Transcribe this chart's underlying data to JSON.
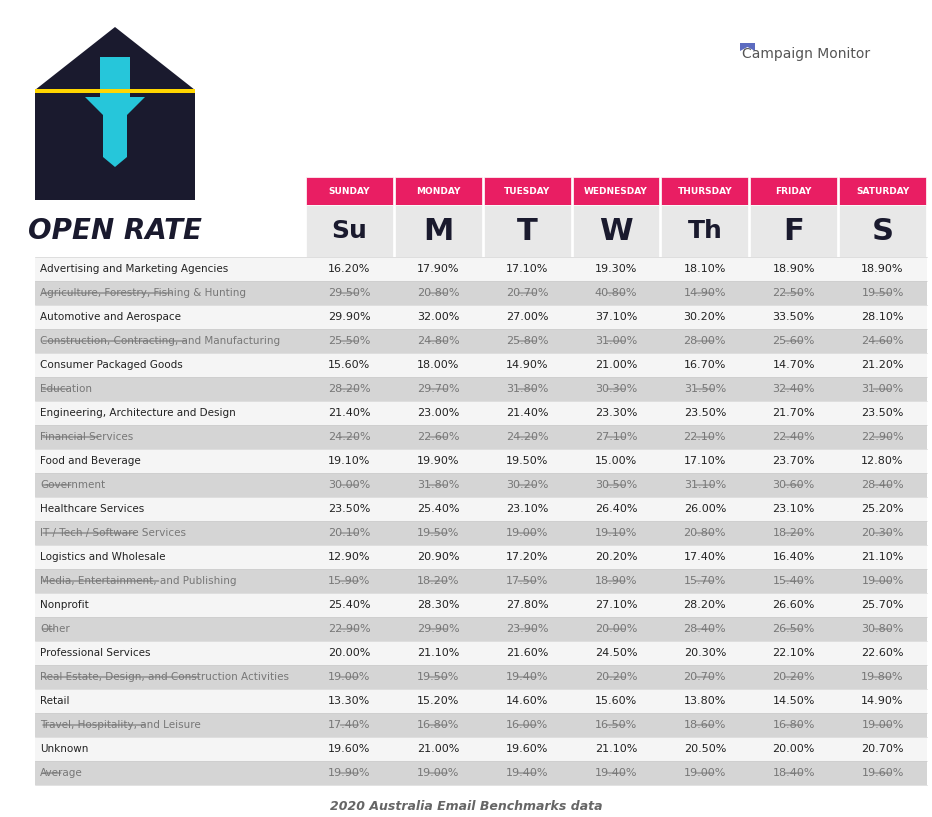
{
  "days": [
    "SUNDAY",
    "MONDAY",
    "TUESDAY",
    "WEDNESDAY",
    "THURSDAY",
    "FRIDAY",
    "SATURDAY"
  ],
  "day_letters": [
    "Su",
    "M",
    "T",
    "W",
    "Th",
    "F",
    "S"
  ],
  "rows": [
    {
      "industry": "Advertising and Marketing Agencies",
      "values": [
        "16.20%",
        "17.90%",
        "17.10%",
        "19.30%",
        "18.10%",
        "18.90%",
        "18.90%"
      ],
      "strikethrough": false
    },
    {
      "industry": "Agriculture, Forestry, Fishing & Hunting",
      "values": [
        "29.50%",
        "20.80%",
        "20.70%",
        "40.80%",
        "14.90%",
        "22.50%",
        "19.50%"
      ],
      "strikethrough": true
    },
    {
      "industry": "Automotive and Aerospace",
      "values": [
        "29.90%",
        "32.00%",
        "27.00%",
        "37.10%",
        "30.20%",
        "33.50%",
        "28.10%"
      ],
      "strikethrough": false
    },
    {
      "industry": "Construction, Contracting, and Manufacturing",
      "values": [
        "25.50%",
        "24.80%",
        "25.80%",
        "31.00%",
        "28.00%",
        "25.60%",
        "24.60%"
      ],
      "strikethrough": true
    },
    {
      "industry": "Consumer Packaged Goods",
      "values": [
        "15.60%",
        "18.00%",
        "14.90%",
        "21.00%",
        "16.70%",
        "14.70%",
        "21.20%"
      ],
      "strikethrough": false
    },
    {
      "industry": "Education",
      "values": [
        "28.20%",
        "29.70%",
        "31.80%",
        "30.30%",
        "31.50%",
        "32.40%",
        "31.00%"
      ],
      "strikethrough": true
    },
    {
      "industry": "Engineering, Architecture and Design",
      "values": [
        "21.40%",
        "23.00%",
        "21.40%",
        "23.30%",
        "23.50%",
        "21.70%",
        "23.50%"
      ],
      "strikethrough": false
    },
    {
      "industry": "Financial Services",
      "values": [
        "24.20%",
        "22.60%",
        "24.20%",
        "27.10%",
        "22.10%",
        "22.40%",
        "22.90%"
      ],
      "strikethrough": true
    },
    {
      "industry": "Food and Beverage",
      "values": [
        "19.10%",
        "19.90%",
        "19.50%",
        "15.00%",
        "17.10%",
        "23.70%",
        "12.80%"
      ],
      "strikethrough": false
    },
    {
      "industry": "Government",
      "values": [
        "30.00%",
        "31.80%",
        "30.20%",
        "30.50%",
        "31.10%",
        "30.60%",
        "28.40%"
      ],
      "strikethrough": true
    },
    {
      "industry": "Healthcare Services",
      "values": [
        "23.50%",
        "25.40%",
        "23.10%",
        "26.40%",
        "26.00%",
        "23.10%",
        "25.20%"
      ],
      "strikethrough": false
    },
    {
      "industry": "IT / Tech / Software Services",
      "values": [
        "20.10%",
        "19.50%",
        "19.00%",
        "19.10%",
        "20.80%",
        "18.20%",
        "20.30%"
      ],
      "strikethrough": true
    },
    {
      "industry": "Logistics and Wholesale",
      "values": [
        "12.90%",
        "20.90%",
        "17.20%",
        "20.20%",
        "17.40%",
        "16.40%",
        "21.10%"
      ],
      "strikethrough": false
    },
    {
      "industry": "Media, Entertainment, and Publishing",
      "values": [
        "15.90%",
        "18.20%",
        "17.50%",
        "18.90%",
        "15.70%",
        "15.40%",
        "19.00%"
      ],
      "strikethrough": true
    },
    {
      "industry": "Nonprofit",
      "values": [
        "25.40%",
        "28.30%",
        "27.80%",
        "27.10%",
        "28.20%",
        "26.60%",
        "25.70%"
      ],
      "strikethrough": false
    },
    {
      "industry": "Other",
      "values": [
        "22.90%",
        "29.90%",
        "23.90%",
        "20.00%",
        "28.40%",
        "26.50%",
        "30.80%"
      ],
      "strikethrough": true
    },
    {
      "industry": "Professional Services",
      "values": [
        "20.00%",
        "21.10%",
        "21.60%",
        "24.50%",
        "20.30%",
        "22.10%",
        "22.60%"
      ],
      "strikethrough": false
    },
    {
      "industry": "Real Estate, Design, and Construction Activities",
      "values": [
        "19.00%",
        "19.50%",
        "19.40%",
        "20.20%",
        "20.70%",
        "20.20%",
        "19.80%"
      ],
      "strikethrough": true
    },
    {
      "industry": "Retail",
      "values": [
        "13.30%",
        "15.20%",
        "14.60%",
        "15.60%",
        "13.80%",
        "14.50%",
        "14.90%"
      ],
      "strikethrough": false
    },
    {
      "industry": "Travel, Hospitality, and Leisure",
      "values": [
        "17.40%",
        "16.80%",
        "16.00%",
        "16.50%",
        "18.60%",
        "16.80%",
        "19.00%"
      ],
      "strikethrough": true
    },
    {
      "industry": "Unknown",
      "values": [
        "19.60%",
        "21.00%",
        "19.60%",
        "21.10%",
        "20.50%",
        "20.00%",
        "20.70%"
      ],
      "strikethrough": false
    },
    {
      "industry": "Average",
      "values": [
        "19.90%",
        "19.00%",
        "19.40%",
        "19.40%",
        "19.00%",
        "18.40%",
        "19.60%"
      ],
      "strikethrough": true
    }
  ],
  "header_bg": "#E91E63",
  "header_text": "#1a1a2e",
  "header_label_color": "#ffffff",
  "odd_row_bg": "#f5f5f5",
  "even_row_bg": "#ffffff",
  "strikethrough_row_bg_odd": "#d0d0d0",
  "strikethrough_row_bg_even": "#e0e0e0",
  "normal_text_color": "#222222",
  "strikethrough_text_color": "#777777",
  "title_text": "OPEN RATE",
  "footer_text": "2020 Australia Email Benchmarks data",
  "cm_label": "Campaign Monitor",
  "bg_color": "#ffffff"
}
